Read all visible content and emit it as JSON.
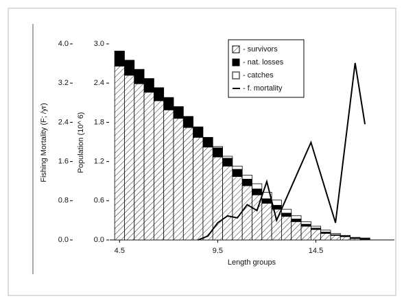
{
  "chart_data": {
    "type": "bar",
    "stacked": true,
    "xlabel": "Length groups",
    "ylabel": "Population (10^ 6)",
    "y2label": "Fishing Mortality (F; /yr)",
    "x": [
      4.5,
      5.0,
      5.5,
      6.0,
      6.5,
      7.0,
      7.5,
      8.0,
      8.5,
      9.0,
      9.5,
      10.0,
      10.5,
      11.0,
      11.5,
      12.0,
      12.5,
      13.0,
      13.5,
      14.0,
      14.5,
      15.0,
      15.5,
      16.0,
      16.5,
      17.0
    ],
    "xlim": [
      4.0,
      18.5
    ],
    "xticks": [
      4.5,
      9.5,
      14.5
    ],
    "ylim": [
      0,
      3.0
    ],
    "yticks": [
      {
        "value": 0,
        "label": "0.0"
      },
      0.6,
      1.2,
      1.8,
      2.4,
      {
        "value": 3.0,
        "label": "3.0"
      }
    ],
    "y2lim": [
      0,
      4.0
    ],
    "y2ticks": [
      {
        "value": 0,
        "label": "0.0"
      },
      0.8,
      1.6,
      2.4,
      3.2,
      {
        "value": 4.0,
        "label": "4.0"
      }
    ],
    "legend": "top-right",
    "series": [
      {
        "name": "- survivors",
        "color": "#ffffff",
        "hatch": "diagonal",
        "values": [
          2.66,
          2.52,
          2.39,
          2.26,
          2.13,
          1.99,
          1.86,
          1.72,
          1.57,
          1.42,
          1.27,
          1.13,
          0.97,
          0.83,
          0.69,
          0.56,
          0.47,
          0.36,
          0.28,
          0.21,
          0.16,
          0.1,
          0.07,
          0.05,
          0.02,
          0.01
        ]
      },
      {
        "name": "- nat. losses",
        "color": "#000000",
        "values": [
          0.23,
          0.23,
          0.22,
          0.21,
          0.2,
          0.19,
          0.18,
          0.17,
          0.16,
          0.15,
          0.14,
          0.12,
          0.11,
          0.1,
          0.09,
          0.07,
          0.06,
          0.05,
          0.04,
          0.03,
          0.02,
          0.02,
          0.01,
          0.01,
          0.01,
          0.01
        ]
      },
      {
        "name": "- catches",
        "color": "#ffffff",
        "values": [
          0,
          0,
          0,
          0,
          0,
          0,
          0,
          0,
          0,
          0,
          0.02,
          0.03,
          0.05,
          0.06,
          0.08,
          0.1,
          0.08,
          0.06,
          0.05,
          0.04,
          0.03,
          0.03,
          0.02,
          0.01,
          0.01,
          0.01
        ]
      },
      {
        "name": "- f. mortality",
        "type": "line",
        "axis": "y2",
        "color": "#000000",
        "x": [
          8.5,
          9.0,
          9.5,
          10.0,
          10.5,
          11.0,
          11.5,
          12.0,
          12.5,
          14.25,
          15.5,
          16.5,
          17.0
        ],
        "values": [
          0,
          0.08,
          0.35,
          0.49,
          0.45,
          0.72,
          0.6,
          1.19,
          0.4,
          1.99,
          0.35,
          3.61,
          2.36
        ]
      }
    ]
  }
}
